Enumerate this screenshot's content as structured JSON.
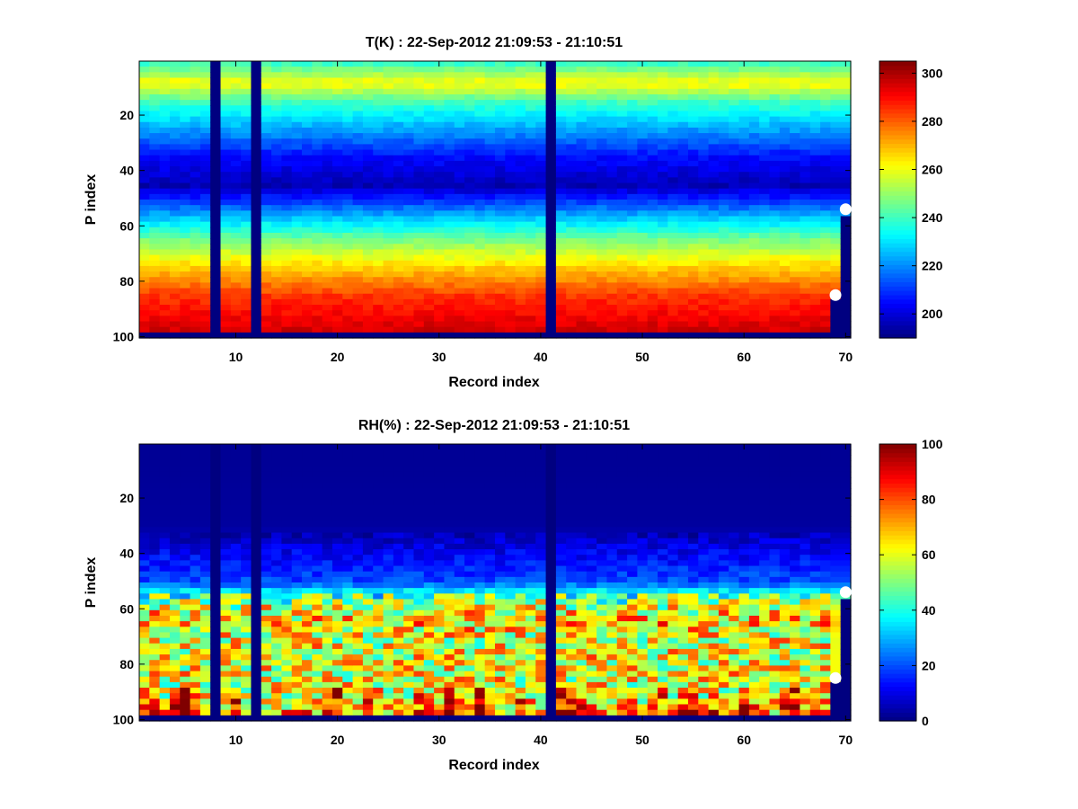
{
  "chart_data": [
    {
      "type": "heatmap",
      "title": "T(K) : 22-Sep-2012 21:09:53 - 21:10:51",
      "xlabel": "Record index",
      "ylabel": "P index",
      "xlim": [
        0.5,
        70.5
      ],
      "ylim": [
        0.5,
        100.5
      ],
      "y_reversed": true,
      "xticks": [
        10,
        20,
        30,
        40,
        50,
        60,
        70
      ],
      "yticks": [
        20,
        40,
        60,
        80,
        100
      ],
      "colormap": "jet",
      "clim": [
        190,
        305
      ],
      "colorbar_ticks": [
        200,
        220,
        240,
        260,
        280,
        300
      ],
      "profile_p_index": [
        1,
        8,
        15,
        25,
        35,
        45,
        55,
        65,
        75,
        85,
        95,
        98
      ],
      "profile_values": [
        240,
        262,
        240,
        222,
        205,
        196,
        222,
        248,
        268,
        285,
        294,
        296
      ],
      "missing_records": [
        8,
        12,
        41
      ],
      "missing_p_index_from": 99,
      "last_profile_records": [
        69,
        70
      ],
      "markers": [
        {
          "x": 69,
          "y": 85
        },
        {
          "x": 70,
          "y": 54
        }
      ]
    },
    {
      "type": "heatmap",
      "title": "RH(%) : 22-Sep-2012 21:09:53 - 21:10:51",
      "xlabel": "Record index",
      "ylabel": "P index",
      "xlim": [
        0.5,
        70.5
      ],
      "ylim": [
        0.5,
        100.5
      ],
      "y_reversed": true,
      "xticks": [
        10,
        20,
        30,
        40,
        50,
        60,
        70
      ],
      "yticks": [
        20,
        40,
        60,
        80,
        100
      ],
      "colormap": "jet",
      "clim": [
        0,
        100
      ],
      "colorbar_ticks": [
        0,
        20,
        40,
        60,
        80,
        100
      ],
      "profile_p_index": [
        1,
        30,
        40,
        50,
        55,
        60,
        65,
        70,
        80,
        90,
        98
      ],
      "profile_values": [
        2,
        3,
        12,
        20,
        45,
        62,
        68,
        60,
        62,
        60,
        70
      ],
      "missing_records": [
        8,
        12,
        41
      ],
      "missing_p_index_from": 99,
      "last_profile_records": [
        69,
        70
      ],
      "markers": [
        {
          "x": 69,
          "y": 85
        },
        {
          "x": 70,
          "y": 54
        }
      ]
    }
  ]
}
